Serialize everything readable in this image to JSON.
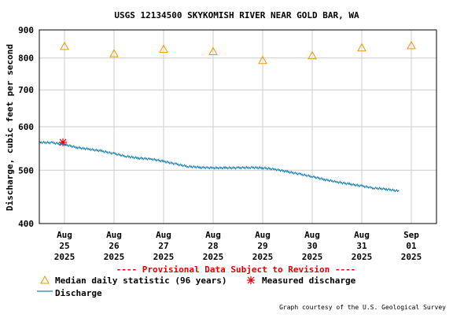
{
  "chart_data": {
    "type": "line",
    "title": "USGS 12134500 SKYKOMISH RIVER NEAR GOLD BAR, WA",
    "ylabel": "Discharge, cubic feet per second",
    "y_scale": "log",
    "ylim": [
      400,
      900
    ],
    "y_ticks": [
      "900",
      "800",
      "700",
      "600",
      "500",
      "400"
    ],
    "y_tick_values": [
      900,
      800,
      700,
      600,
      500,
      400
    ],
    "x_ticks": [
      {
        "month": "Aug",
        "day": "25",
        "year": "2025",
        "date": "2025-08-25"
      },
      {
        "month": "Aug",
        "day": "26",
        "year": "2025",
        "date": "2025-08-26"
      },
      {
        "month": "Aug",
        "day": "27",
        "year": "2025",
        "date": "2025-08-27"
      },
      {
        "month": "Aug",
        "day": "28",
        "year": "2025",
        "date": "2025-08-28"
      },
      {
        "month": "Aug",
        "day": "29",
        "year": "2025",
        "date": "2025-08-29"
      },
      {
        "month": "Aug",
        "day": "30",
        "year": "2025",
        "date": "2025-08-30"
      },
      {
        "month": "Aug",
        "day": "31",
        "year": "2025",
        "date": "2025-08-31"
      },
      {
        "month": "Sep",
        "day": "01",
        "year": "2025",
        "date": "2025-09-01"
      }
    ],
    "grid": true,
    "provisional_note": "---- Provisional Data Subject to Revision ----",
    "credit": "Graph courtesy of the U.S. Geological Survey",
    "colors": {
      "discharge": "#1a7fb0",
      "median": "#e89a00",
      "measured": "#e00000",
      "note": "#e00000",
      "grid": "#cccccc"
    },
    "series": [
      {
        "name": "Median daily statistic (96 years)",
        "marker": "triangle",
        "x": [
          "2025-08-25",
          "2025-08-26",
          "2025-08-27",
          "2025-08-28",
          "2025-08-29",
          "2025-08-30",
          "2025-08-31",
          "2025-09-01"
        ],
        "y": [
          840,
          815,
          830,
          822,
          792,
          808,
          835,
          843
        ]
      },
      {
        "name": "Measured discharge",
        "marker": "asterisk",
        "x": [
          "2025-08-25"
        ],
        "y": [
          562
        ]
      },
      {
        "name": "Discharge",
        "marker": "line",
        "x": [
          "2025-08-24 12:00",
          "2025-08-24 18:00",
          "2025-08-25 00:00",
          "2025-08-25 06:00",
          "2025-08-25 12:00",
          "2025-08-25 18:00",
          "2025-08-26 00:00",
          "2025-08-26 06:00",
          "2025-08-26 12:00",
          "2025-08-26 18:00",
          "2025-08-27 00:00",
          "2025-08-27 06:00",
          "2025-08-27 12:00",
          "2025-08-27 18:00",
          "2025-08-28 00:00",
          "2025-08-28 06:00",
          "2025-08-28 12:00",
          "2025-08-28 18:00",
          "2025-08-29 00:00",
          "2025-08-29 06:00",
          "2025-08-29 12:00",
          "2025-08-29 18:00",
          "2025-08-30 00:00",
          "2025-08-30 06:00",
          "2025-08-30 12:00",
          "2025-08-30 18:00",
          "2025-08-31 00:00",
          "2025-08-31 06:00",
          "2025-08-31 12:00",
          "2025-08-31 18:00"
        ],
        "y": [
          562,
          561,
          557,
          550,
          546,
          542,
          536,
          530,
          526,
          524,
          519,
          513,
          508,
          506,
          505,
          505,
          505,
          506,
          505,
          502,
          497,
          492,
          487,
          481,
          476,
          472,
          468,
          464,
          462,
          458
        ]
      }
    ],
    "legend": {
      "median_label": "Median daily statistic (96 years)",
      "measured_label": "Measured discharge",
      "discharge_label": "Discharge"
    }
  }
}
